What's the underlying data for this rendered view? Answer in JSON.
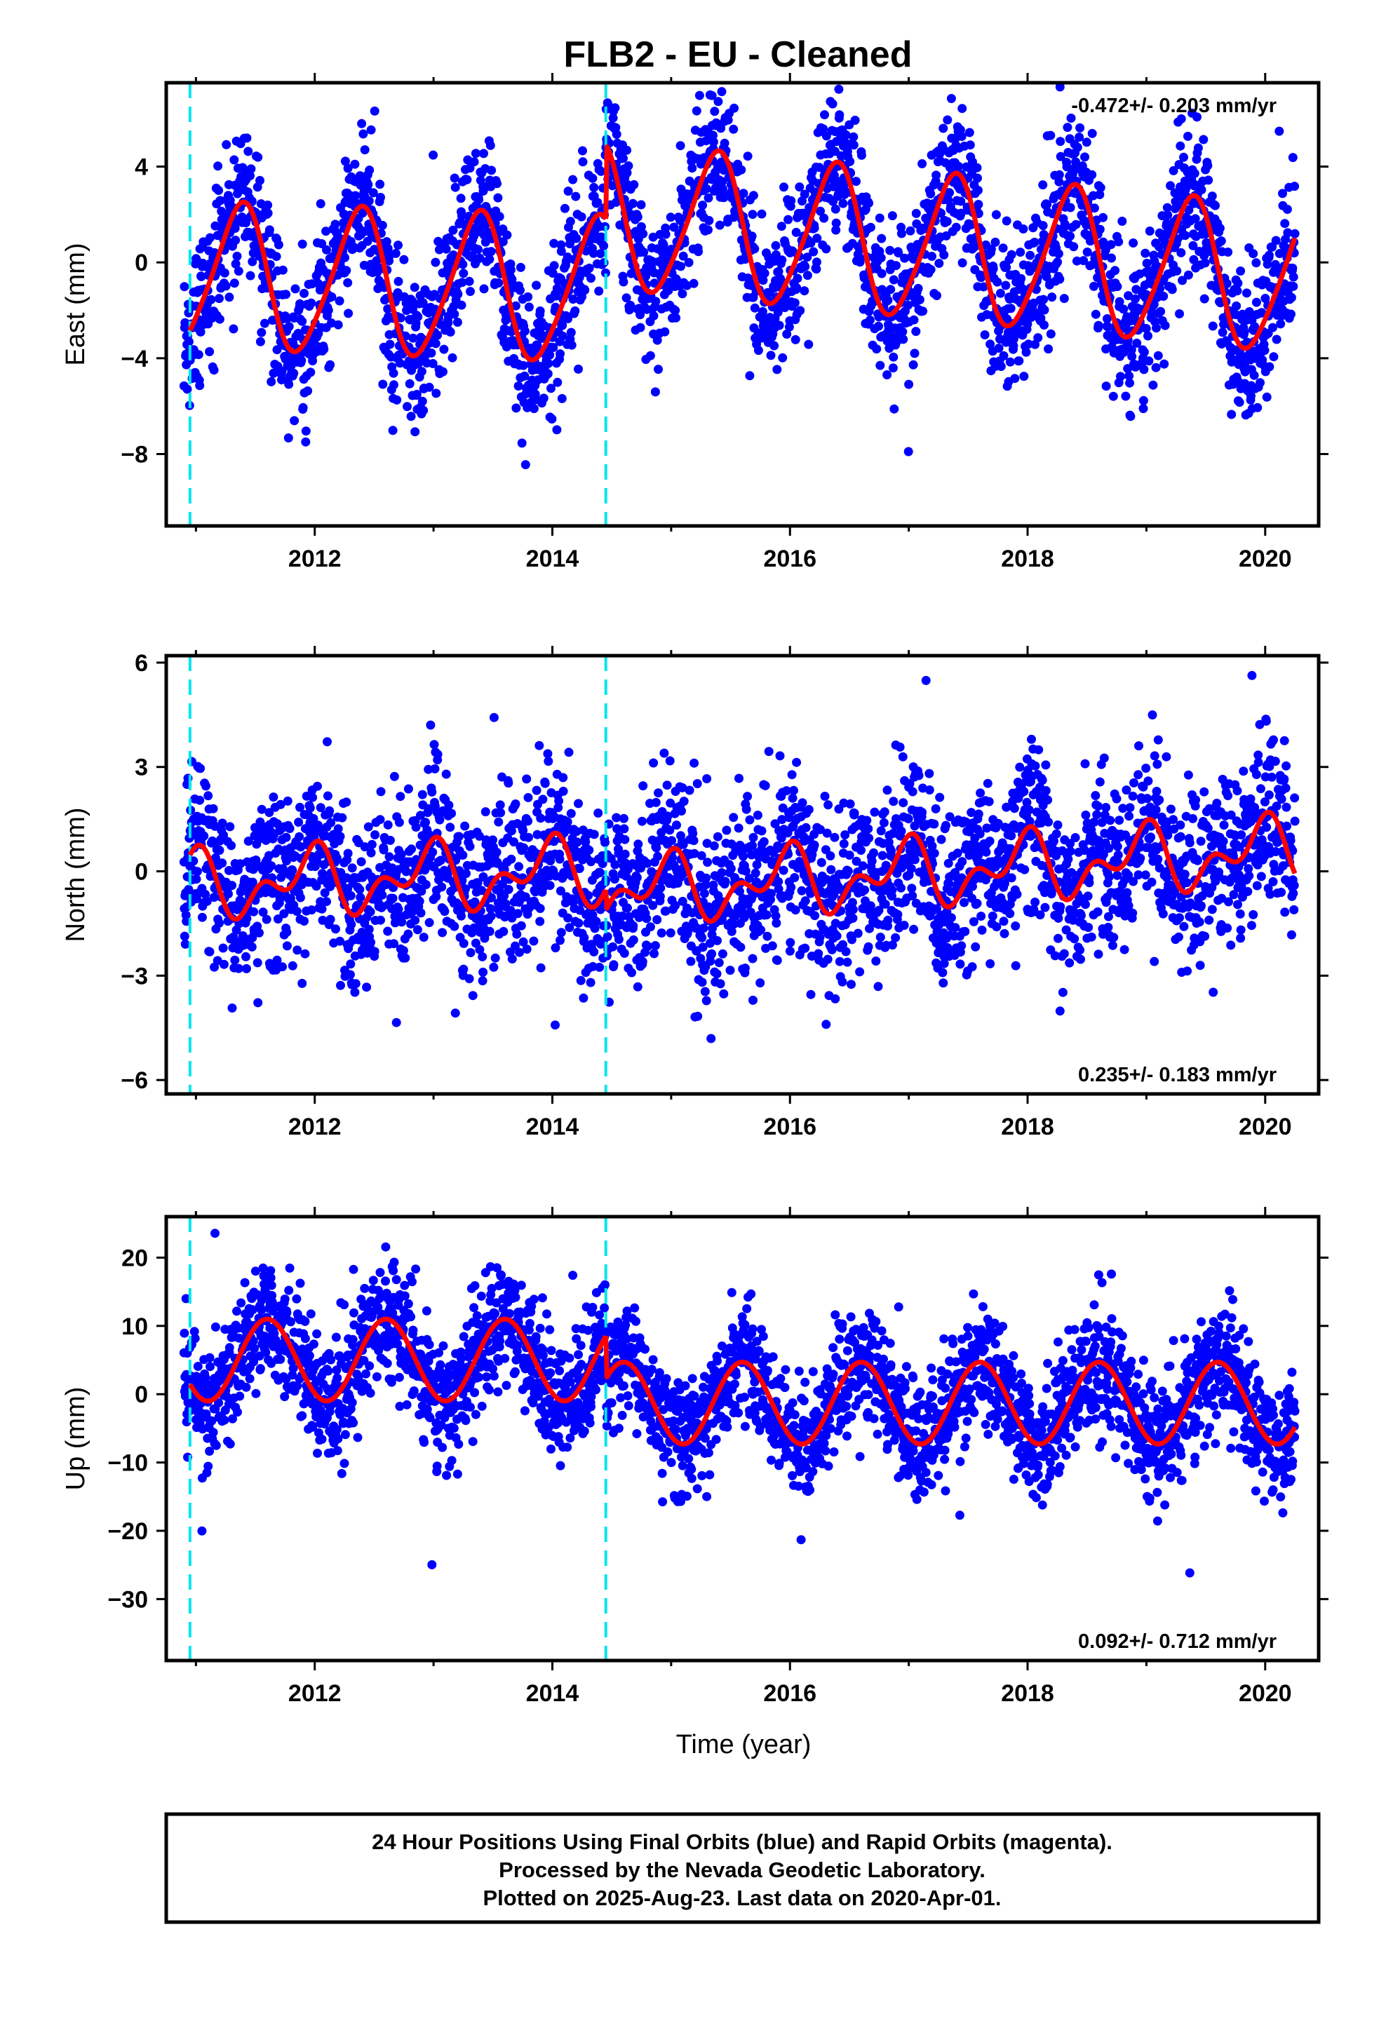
{
  "title": "FLB2  - EU - Cleaned",
  "xlabel": "Time (year)",
  "footer": [
    "24 Hour Positions Using Final Orbits (blue) and Rapid Orbits (magenta).",
    "Processed by the Nevada Geodetic Laboratory.",
    "Plotted on 2025-Aug-23. Last data on 2020-Apr-01."
  ],
  "colors": {
    "points": "#0000ff",
    "model": "#ff0000",
    "steps": "#00e5ee",
    "frame": "#000000"
  },
  "chart_data": [
    {
      "type": "scatter",
      "component": "east",
      "ylabel": "East (mm)",
      "rate_label": "-0.472+/- 0.203 mm/yr",
      "rate_position": "top-right",
      "xlim": [
        2010.75,
        2020.45
      ],
      "ylim": [
        -11,
        7.5
      ],
      "xticks": [
        2012,
        2014,
        2016,
        2018,
        2020
      ],
      "xtick_labels": [
        "2012",
        "2014",
        "2016",
        "2018",
        "2020"
      ],
      "yticks": [
        4,
        0,
        -4,
        -8
      ],
      "ytick_labels": [
        "4",
        "0",
        "−4",
        "−8"
      ],
      "step_epochs": [
        2010.95,
        2014.45
      ],
      "model": {
        "amplitude": 3.0,
        "phase_peak": 0.37,
        "semiannual_amplitude": 0.4,
        "segments": [
          {
            "start": 2010.95,
            "end": 2014.45,
            "offset_start": -0.6,
            "offset_end": -1.2
          },
          {
            "start": 2014.45,
            "end": 2020.25,
            "offset_start": 1.9,
            "offset_end": -0.8
          }
        ]
      },
      "scatter_sigma": 1.5,
      "data_start": 2010.9,
      "data_end": 2020.25
    },
    {
      "type": "scatter",
      "component": "north",
      "ylabel": "North (mm)",
      "rate_label": "0.235+/- 0.183 mm/yr",
      "rate_position": "bottom-right",
      "xlim": [
        2010.75,
        2020.45
      ],
      "ylim": [
        -6.4,
        6.2
      ],
      "xticks": [
        2012,
        2014,
        2016,
        2018,
        2020
      ],
      "xtick_labels": [
        "2012",
        "2014",
        "2016",
        "2018",
        "2020"
      ],
      "yticks": [
        6,
        3,
        0,
        -3,
        -6
      ],
      "ytick_labels": [
        "6",
        "3",
        "0",
        "−3",
        "−6"
      ],
      "step_epochs": [
        2010.95,
        2014.45
      ],
      "model": {
        "amplitude": 0.7,
        "phase_peak": 0.95,
        "semiannual_amplitude": 0.55,
        "segments": [
          {
            "start": 2010.95,
            "end": 2014.45,
            "offset_start": -0.4,
            "offset_end": 0.0
          },
          {
            "start": 2014.45,
            "end": 2020.25,
            "offset_start": -0.6,
            "offset_end": 0.6
          }
        ]
      },
      "scatter_sigma": 1.2,
      "data_start": 2010.9,
      "data_end": 2020.25
    },
    {
      "type": "scatter",
      "component": "up",
      "ylabel": "Up (mm)",
      "rate_label": "0.092+/- 0.712 mm/yr",
      "rate_position": "bottom-right",
      "xlim": [
        2010.75,
        2020.45
      ],
      "ylim": [
        -39,
        26
      ],
      "xticks": [
        2012,
        2014,
        2016,
        2018,
        2020
      ],
      "xtick_labels": [
        "2012",
        "2014",
        "2016",
        "2018",
        "2020"
      ],
      "yticks": [
        20,
        10,
        0,
        -10,
        -20,
        -30
      ],
      "ytick_labels": [
        "20",
        "10",
        "0",
        "−10",
        "−20",
        "−30"
      ],
      "step_epochs": [
        2010.95,
        2014.45
      ],
      "model": {
        "amplitude": 6.0,
        "phase_peak": 0.6,
        "semiannual_amplitude": 0.0,
        "segments": [
          {
            "start": 2010.95,
            "end": 2014.45,
            "offset_start": 5.0,
            "offset_end": 5.0
          },
          {
            "start": 2014.45,
            "end": 2020.25,
            "offset_start": -1.3,
            "offset_end": -1.3
          }
        ]
      },
      "scatter_sigma": 4.2,
      "data_start": 2010.9,
      "data_end": 2020.25
    }
  ]
}
